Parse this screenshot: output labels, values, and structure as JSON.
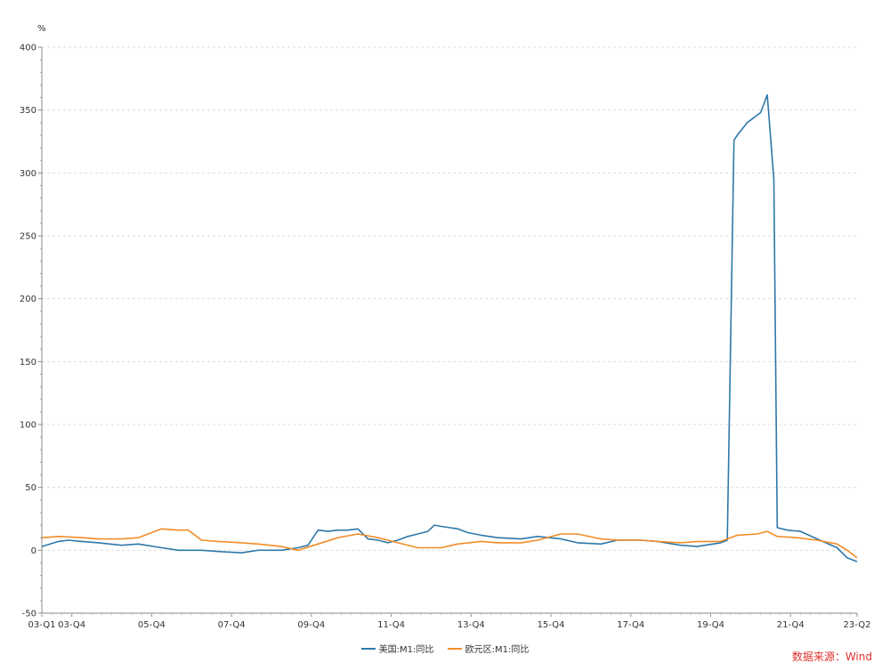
{
  "chart_data": {
    "type": "line",
    "title": "",
    "xlabel": "",
    "ylabel": "%",
    "ylim": [
      -50,
      400
    ],
    "yticks": [
      -50,
      0,
      50,
      100,
      150,
      200,
      250,
      300,
      350,
      400
    ],
    "x_tick_labels": [
      "03-Q1",
      "03-Q4",
      "05-Q4",
      "07-Q4",
      "09-Q4",
      "11-Q4",
      "13-Q4",
      "15-Q4",
      "17-Q4",
      "19-Q4",
      "21-Q4",
      "23-Q2"
    ],
    "x_range": [
      "2003-01",
      "2023-06"
    ],
    "grid": "horizontal dashed",
    "legend_position": "bottom-center",
    "series": [
      {
        "name": "美国:M1:同比",
        "color": "#2e78a8",
        "points": [
          [
            "2003-01",
            3
          ],
          [
            "2003-06",
            7
          ],
          [
            "2003-09",
            8
          ],
          [
            "2004-01",
            7
          ],
          [
            "2004-06",
            6
          ],
          [
            "2005-01",
            4
          ],
          [
            "2005-06",
            5
          ],
          [
            "2006-01",
            2
          ],
          [
            "2006-06",
            0
          ],
          [
            "2007-01",
            0
          ],
          [
            "2007-06",
            -1
          ],
          [
            "2008-01",
            -2
          ],
          [
            "2008-06",
            0
          ],
          [
            "2009-01",
            0
          ],
          [
            "2009-06",
            2
          ],
          [
            "2009-09",
            4
          ],
          [
            "2009-12",
            16
          ],
          [
            "2010-03",
            15
          ],
          [
            "2010-06",
            16
          ],
          [
            "2010-09",
            16
          ],
          [
            "2010-12",
            17
          ],
          [
            "2011-03",
            9
          ],
          [
            "2011-06",
            8
          ],
          [
            "2011-09",
            6
          ],
          [
            "2011-12",
            8
          ],
          [
            "2012-03",
            11
          ],
          [
            "2012-06",
            13
          ],
          [
            "2012-09",
            15
          ],
          [
            "2012-11",
            20
          ],
          [
            "2013-01",
            19
          ],
          [
            "2013-06",
            17
          ],
          [
            "2013-09",
            14
          ],
          [
            "2014-01",
            12
          ],
          [
            "2014-06",
            10
          ],
          [
            "2015-01",
            9
          ],
          [
            "2015-06",
            11
          ],
          [
            "2016-01",
            9
          ],
          [
            "2016-06",
            6
          ],
          [
            "2017-01",
            5
          ],
          [
            "2017-06",
            8
          ],
          [
            "2018-01",
            8
          ],
          [
            "2018-06",
            7
          ],
          [
            "2019-01",
            4
          ],
          [
            "2019-06",
            3
          ],
          [
            "2020-01",
            6
          ],
          [
            "2020-03",
            8
          ],
          [
            "2020-05",
            326
          ],
          [
            "2020-06",
            330
          ],
          [
            "2020-09",
            340
          ],
          [
            "2021-01",
            348
          ],
          [
            "2021-03",
            362
          ],
          [
            "2021-05",
            295
          ],
          [
            "2021-06",
            18
          ],
          [
            "2021-09",
            16
          ],
          [
            "2022-01",
            15
          ],
          [
            "2022-06",
            9
          ],
          [
            "2022-12",
            2
          ],
          [
            "2023-03",
            -6
          ],
          [
            "2023-06",
            -9
          ]
        ]
      },
      {
        "name": "欧元区:M1:同比",
        "color": "#f28c28",
        "points": [
          [
            "2003-01",
            10
          ],
          [
            "2003-06",
            11
          ],
          [
            "2004-01",
            10
          ],
          [
            "2004-06",
            9
          ],
          [
            "2005-01",
            9
          ],
          [
            "2005-06",
            10
          ],
          [
            "2006-01",
            17
          ],
          [
            "2006-06",
            16
          ],
          [
            "2006-09",
            16
          ],
          [
            "2007-01",
            8
          ],
          [
            "2007-06",
            7
          ],
          [
            "2008-01",
            6
          ],
          [
            "2008-06",
            5
          ],
          [
            "2009-01",
            3
          ],
          [
            "2009-06",
            0
          ],
          [
            "2009-12",
            5
          ],
          [
            "2010-06",
            10
          ],
          [
            "2010-12",
            13
          ],
          [
            "2011-06",
            10
          ],
          [
            "2011-12",
            6
          ],
          [
            "2012-06",
            2
          ],
          [
            "2013-01",
            2
          ],
          [
            "2013-06",
            5
          ],
          [
            "2014-01",
            7
          ],
          [
            "2014-06",
            6
          ],
          [
            "2015-01",
            6
          ],
          [
            "2015-06",
            8
          ],
          [
            "2016-01",
            13
          ],
          [
            "2016-06",
            13
          ],
          [
            "2017-01",
            9
          ],
          [
            "2017-06",
            8
          ],
          [
            "2018-01",
            8
          ],
          [
            "2018-06",
            7
          ],
          [
            "2019-01",
            6
          ],
          [
            "2019-06",
            7
          ],
          [
            "2020-01",
            7
          ],
          [
            "2020-03",
            9
          ],
          [
            "2020-06",
            12
          ],
          [
            "2020-12",
            13
          ],
          [
            "2021-03",
            15
          ],
          [
            "2021-06",
            11
          ],
          [
            "2021-12",
            10
          ],
          [
            "2022-06",
            8
          ],
          [
            "2022-12",
            5
          ],
          [
            "2023-03",
            0
          ],
          [
            "2023-06",
            -6
          ]
        ]
      }
    ]
  },
  "source_text": "数据来源：Wind"
}
